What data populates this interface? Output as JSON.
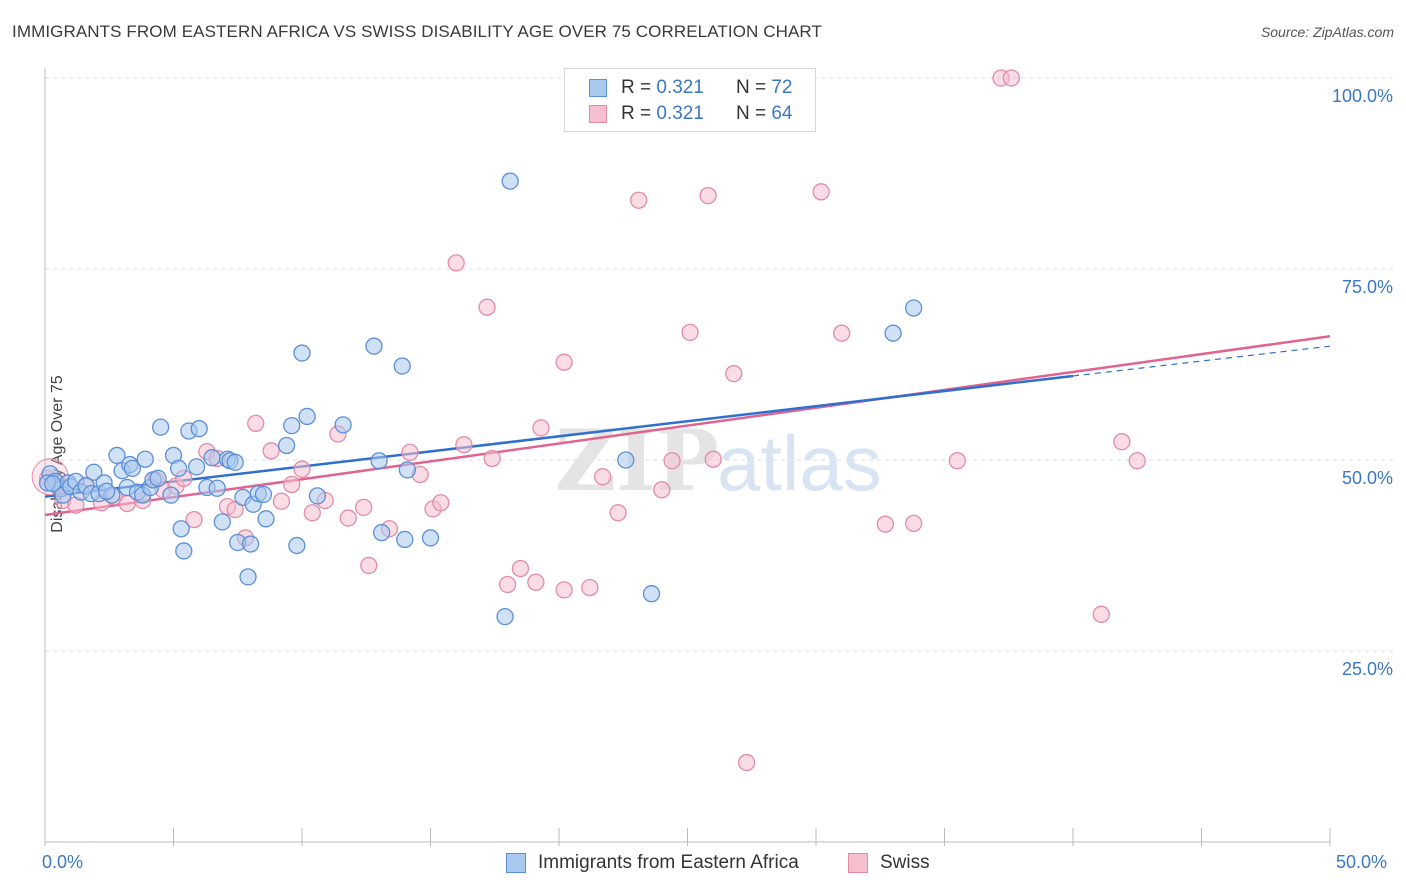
{
  "title": "IMMIGRANTS FROM EASTERN AFRICA VS SWISS DISABILITY AGE OVER 75 CORRELATION CHART",
  "source": "Source: ZipAtlas.com",
  "watermark": {
    "zip": "ZIP",
    "atlas": "atlas"
  },
  "legend": {
    "rows": [
      {
        "r_label": "R = ",
        "r_value": "0.321",
        "n_label": "N = ",
        "n_value": "72"
      },
      {
        "r_label": "R = ",
        "r_value": "0.321",
        "n_label": "N = ",
        "n_value": "64"
      }
    ]
  },
  "bottom_legend": [
    "Immigrants from Eastern Africa",
    "Swiss"
  ],
  "colors": {
    "blue_fill": "#a9c8ee",
    "blue_stroke": "#5b8fd6",
    "blue_line": "#2e6fcf",
    "pink_fill": "#f6bfd0",
    "pink_stroke": "#e38aa7",
    "pink_line": "#e0648f",
    "tick_label": "#3b78c3",
    "grid": "#dddddd"
  },
  "chart_data": {
    "type": "scatter",
    "title": "IMMIGRANTS FROM EASTERN AFRICA VS SWISS DISABILITY AGE OVER 75 CORRELATION CHART",
    "xlabel": "",
    "ylabel": "Disability Age Over 75",
    "xlim": [
      0,
      50
    ],
    "ylim": [
      0,
      102
    ],
    "x_tick_labels": [
      "0.0%",
      "50.0%"
    ],
    "y_tick_labels": [
      "25.0%",
      "50.0%",
      "75.0%",
      "100.0%"
    ],
    "y_ticks": [
      25,
      50,
      75,
      100
    ],
    "grid": true,
    "legend_position": "top-center",
    "series": [
      {
        "name": "Immigrants from Eastern Africa",
        "r": 0.321,
        "n": 72,
        "trend": {
          "x": [
            0,
            40
          ],
          "y": [
            45.2,
            61.0
          ],
          "dashed_to": [
            50,
            64.9
          ]
        },
        "points": [
          [
            0.2,
            48.2
          ],
          [
            0.4,
            47.2
          ],
          [
            0.6,
            46.2
          ],
          [
            0.7,
            45.4
          ],
          [
            0.9,
            47.0
          ],
          [
            1.0,
            46.5
          ],
          [
            1.2,
            47.2
          ],
          [
            1.4,
            45.8
          ],
          [
            1.6,
            46.6
          ],
          [
            1.8,
            45.6
          ],
          [
            1.9,
            48.4
          ],
          [
            2.1,
            45.6
          ],
          [
            2.3,
            47.0
          ],
          [
            2.6,
            45.4
          ],
          [
            2.8,
            50.6
          ],
          [
            3.0,
            48.6
          ],
          [
            3.2,
            46.4
          ],
          [
            3.3,
            49.4
          ],
          [
            3.4,
            48.9
          ],
          [
            3.6,
            45.8
          ],
          [
            3.8,
            45.4
          ],
          [
            3.9,
            50.1
          ],
          [
            4.1,
            46.4
          ],
          [
            4.2,
            47.4
          ],
          [
            4.4,
            47.6
          ],
          [
            4.5,
            54.3
          ],
          [
            4.9,
            45.4
          ],
          [
            5.0,
            50.6
          ],
          [
            5.2,
            48.9
          ],
          [
            5.3,
            41.0
          ],
          [
            5.4,
            38.1
          ],
          [
            5.6,
            53.8
          ],
          [
            5.9,
            49.1
          ],
          [
            6.0,
            54.1
          ],
          [
            6.3,
            46.4
          ],
          [
            6.5,
            50.3
          ],
          [
            6.7,
            46.3
          ],
          [
            6.9,
            41.9
          ],
          [
            7.1,
            50.1
          ],
          [
            7.2,
            49.9
          ],
          [
            7.4,
            49.7
          ],
          [
            7.5,
            39.2
          ],
          [
            7.7,
            45.1
          ],
          [
            7.9,
            34.7
          ],
          [
            8.0,
            39.0
          ],
          [
            8.1,
            44.2
          ],
          [
            8.3,
            45.6
          ],
          [
            8.5,
            45.5
          ],
          [
            8.6,
            42.3
          ],
          [
            9.4,
            51.9
          ],
          [
            9.6,
            54.5
          ],
          [
            9.8,
            38.8
          ],
          [
            10.2,
            55.7
          ],
          [
            10.0,
            64.0
          ],
          [
            10.6,
            45.3
          ],
          [
            11.6,
            54.6
          ],
          [
            12.8,
            64.9
          ],
          [
            13.0,
            49.9
          ],
          [
            13.1,
            40.5
          ],
          [
            13.9,
            62.3
          ],
          [
            14.1,
            48.7
          ],
          [
            14.0,
            39.6
          ],
          [
            15.0,
            39.8
          ],
          [
            18.1,
            86.5
          ],
          [
            17.9,
            29.5
          ],
          [
            22.6,
            50.0
          ],
          [
            23.6,
            32.5
          ],
          [
            33.0,
            66.6
          ],
          [
            33.8,
            69.9
          ],
          [
            0.1,
            47.0
          ],
          [
            0.3,
            46.9
          ],
          [
            2.4,
            45.9
          ]
        ]
      },
      {
        "name": "Swiss",
        "r": 0.321,
        "n": 64,
        "trend": {
          "x": [
            0,
            50
          ],
          "y": [
            42.8,
            66.2
          ]
        },
        "points": [
          [
            0.1,
            47.6
          ],
          [
            0.5,
            47.0
          ],
          [
            0.7,
            44.7
          ],
          [
            1.2,
            44.1
          ],
          [
            1.6,
            46.7
          ],
          [
            2.2,
            44.4
          ],
          [
            2.7,
            45.2
          ],
          [
            3.2,
            44.3
          ],
          [
            3.8,
            44.7
          ],
          [
            4.3,
            47.4
          ],
          [
            4.6,
            46.1
          ],
          [
            5.1,
            46.6
          ],
          [
            5.4,
            47.6
          ],
          [
            5.8,
            42.2
          ],
          [
            6.3,
            51.1
          ],
          [
            6.7,
            50.2
          ],
          [
            7.1,
            43.9
          ],
          [
            7.4,
            43.5
          ],
          [
            7.8,
            39.8
          ],
          [
            8.2,
            54.8
          ],
          [
            8.8,
            51.2
          ],
          [
            9.2,
            44.6
          ],
          [
            9.6,
            46.8
          ],
          [
            10.0,
            48.8
          ],
          [
            10.4,
            43.1
          ],
          [
            10.9,
            44.7
          ],
          [
            11.4,
            53.4
          ],
          [
            11.8,
            42.4
          ],
          [
            12.4,
            43.8
          ],
          [
            12.6,
            36.2
          ],
          [
            13.4,
            41.0
          ],
          [
            14.2,
            51.0
          ],
          [
            14.6,
            48.1
          ],
          [
            15.1,
            43.6
          ],
          [
            15.4,
            44.4
          ],
          [
            16.0,
            75.8
          ],
          [
            16.3,
            52.0
          ],
          [
            17.2,
            70.0
          ],
          [
            17.4,
            50.2
          ],
          [
            18.0,
            33.7
          ],
          [
            18.5,
            35.8
          ],
          [
            19.1,
            34.0
          ],
          [
            19.3,
            54.2
          ],
          [
            20.2,
            62.8
          ],
          [
            20.2,
            33.0
          ],
          [
            21.2,
            33.3
          ],
          [
            21.7,
            47.8
          ],
          [
            22.3,
            43.1
          ],
          [
            23.1,
            84.0
          ],
          [
            24.0,
            46.1
          ],
          [
            24.4,
            49.9
          ],
          [
            25.1,
            66.7
          ],
          [
            25.8,
            84.6
          ],
          [
            26.0,
            50.1
          ],
          [
            26.8,
            61.3
          ],
          [
            27.3,
            10.4
          ],
          [
            27.9,
            100.0
          ],
          [
            30.2,
            85.1
          ],
          [
            31.0,
            66.6
          ],
          [
            32.7,
            41.6
          ],
          [
            33.8,
            41.7
          ],
          [
            35.5,
            49.9
          ],
          [
            37.2,
            100.0
          ],
          [
            37.6,
            100.0
          ]
        ],
        "extra_points": [
          [
            41.9,
            52.4
          ],
          [
            42.5,
            49.9
          ],
          [
            41.1,
            29.8
          ]
        ]
      }
    ]
  }
}
